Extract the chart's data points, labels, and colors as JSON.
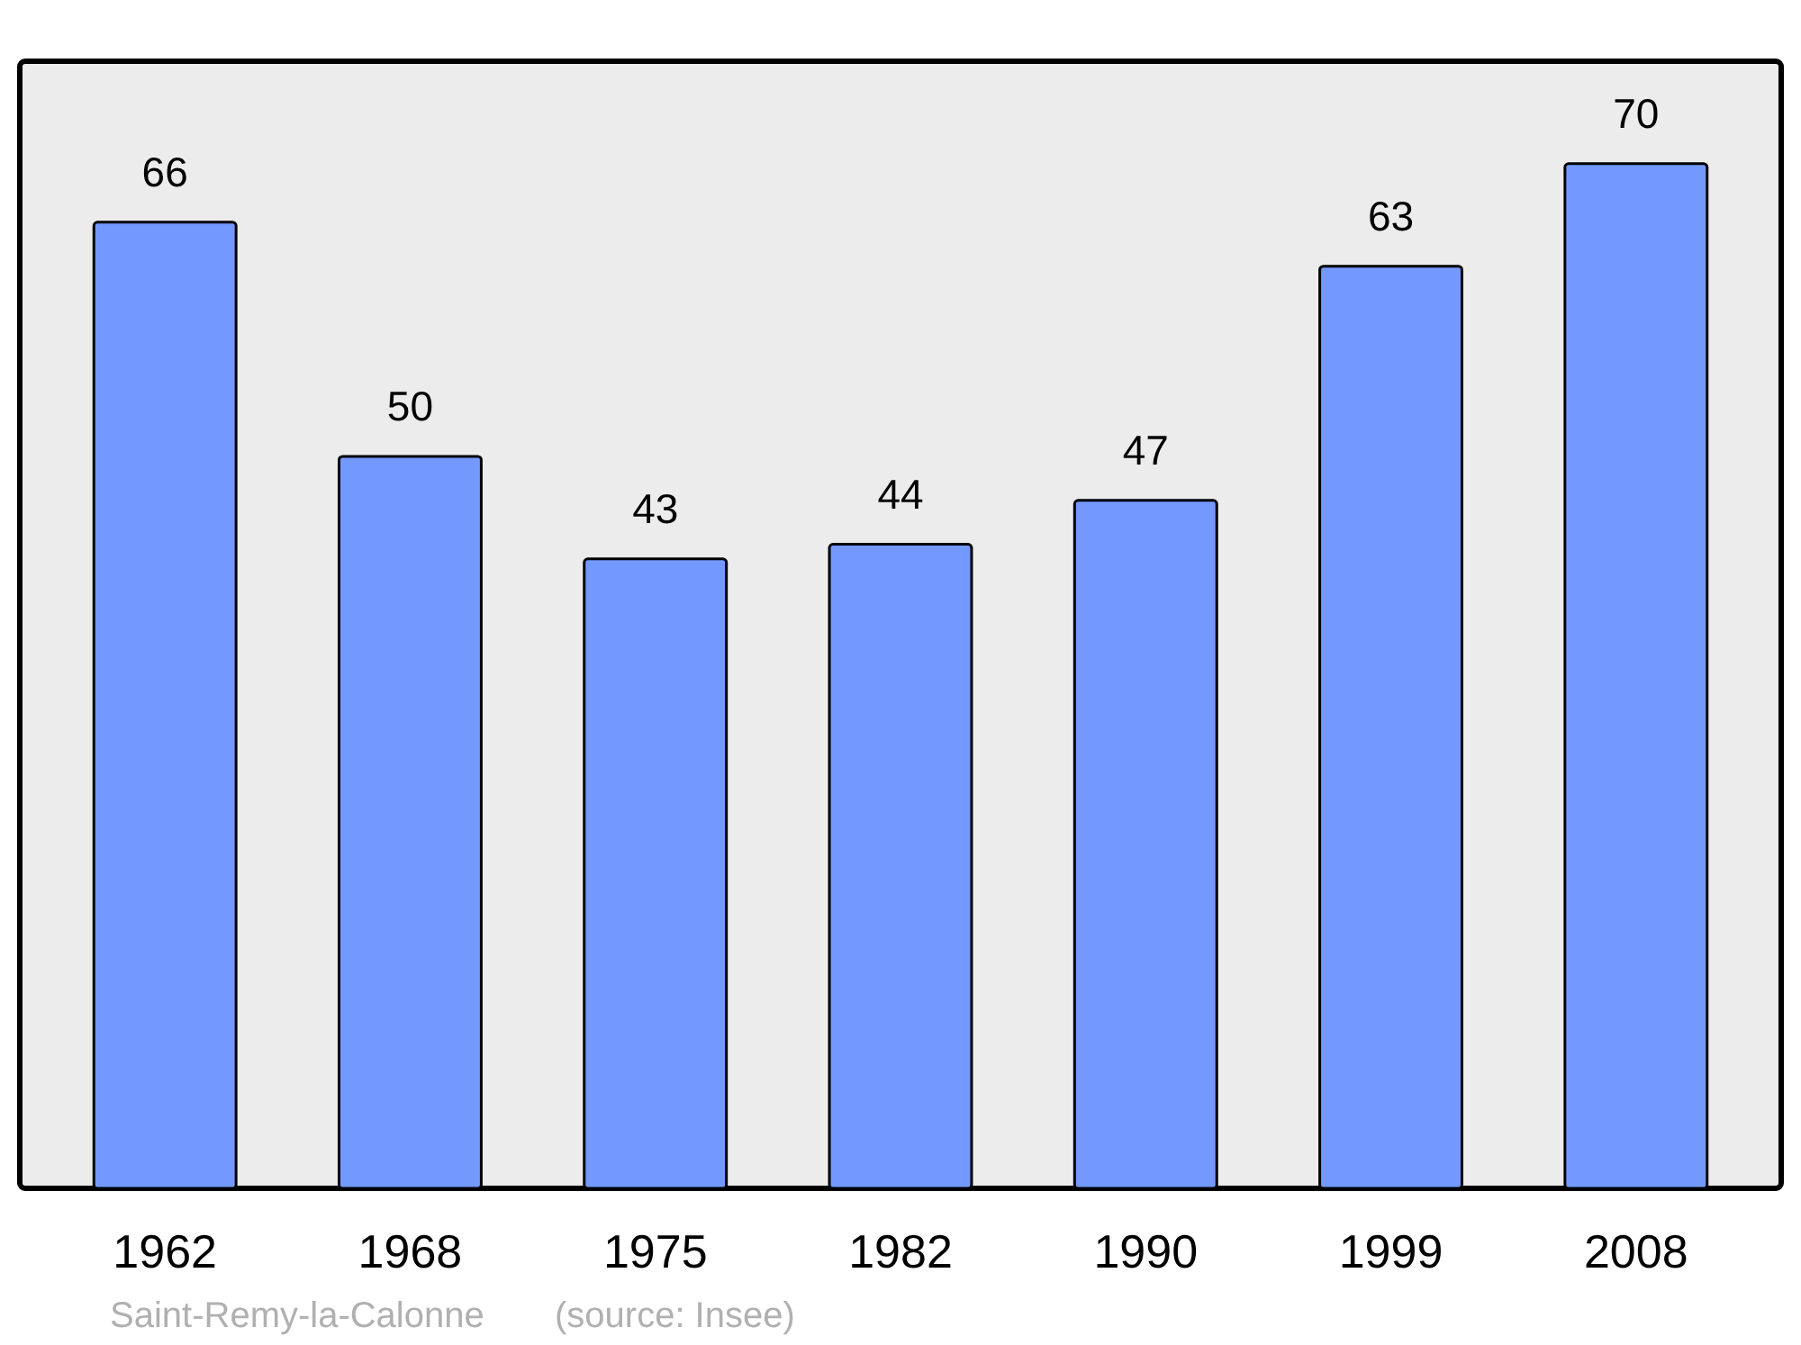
{
  "chart_data": {
    "type": "bar",
    "categories": [
      "1962",
      "1968",
      "1975",
      "1982",
      "1990",
      "1999",
      "2008"
    ],
    "values": [
      66,
      50,
      43,
      44,
      47,
      63,
      70
    ],
    "color": "#7399ff",
    "ylim": [
      0,
      77
    ],
    "data_labels": true,
    "annotations": [
      "Saint-Remy-la-Calonne",
      "(source: Insee)"
    ]
  }
}
